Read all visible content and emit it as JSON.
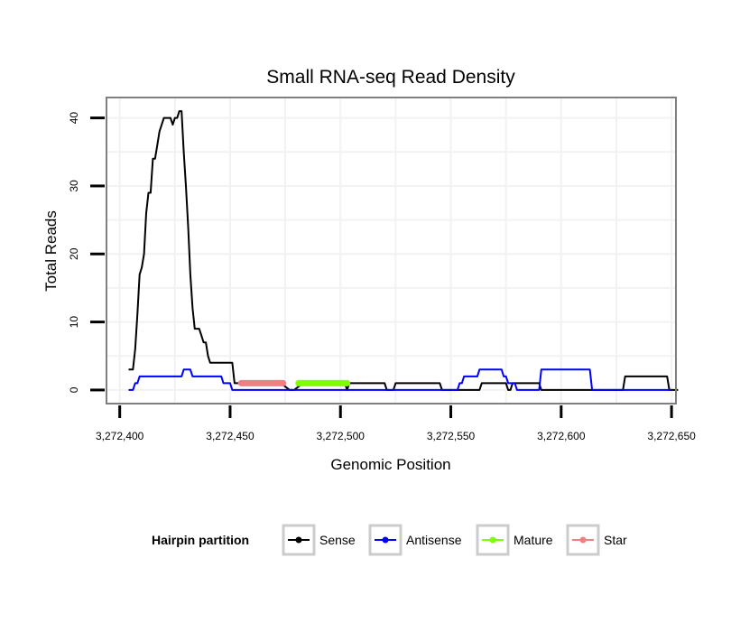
{
  "chart_data": {
    "type": "line",
    "title": "Small RNA-seq Read Density",
    "xlabel": "Genomic Position",
    "ylabel": "Total Reads",
    "xlim": [
      3272394,
      3272652
    ],
    "ylim": [
      -2,
      43
    ],
    "x_ticks": [
      3272400,
      3272450,
      3272500,
      3272550,
      3272600,
      3272650
    ],
    "x_tick_labels": [
      "3,272,400",
      "3,272,450",
      "3,272,500",
      "3,272,550",
      "3,272,600",
      "3,272,650"
    ],
    "y_ticks": [
      0,
      10,
      20,
      30,
      40
    ],
    "y_tick_labels": [
      "0",
      "10",
      "20",
      "30",
      "40"
    ],
    "grid": true,
    "legend": {
      "title": "Hairpin partition",
      "position": "bottom",
      "entries": [
        "Sense",
        "Antisense",
        "Mature",
        "Star"
      ]
    },
    "series": [
      {
        "name": "Sense",
        "color": "#000000",
        "x": [
          3272404,
          3272406,
          3272407,
          3272408,
          3272409,
          3272410,
          3272411,
          3272412,
          3272413,
          3272414,
          3272415,
          3272416,
          3272417,
          3272418,
          3272420,
          3272422,
          3272423,
          3272424,
          3272425,
          3272426,
          3272427,
          3272428,
          3272429,
          3272430,
          3272431,
          3272432,
          3272433,
          3272434,
          3272435,
          3272436,
          3272437,
          3272438,
          3272439,
          3272440,
          3272441,
          3272442,
          3272443,
          3272445,
          3272448,
          3272451,
          3272452,
          3272454,
          3272456,
          3272471,
          3272473,
          3272477,
          3272479,
          3272483,
          3272502,
          3272503,
          3272504,
          3272520,
          3272521,
          3272524,
          3272525,
          3272545,
          3272546,
          3272547,
          3272548,
          3272563,
          3272564,
          3272565,
          3272566,
          3272575,
          3272576,
          3272577,
          3272578,
          3272590,
          3272591,
          3272600,
          3272628,
          3272629,
          3272630,
          3272648,
          3272649,
          3272650,
          3272653
        ],
        "y": [
          3,
          3,
          6,
          11,
          17,
          18,
          20,
          26,
          29,
          29,
          34,
          34,
          36,
          38,
          40,
          40,
          40,
          39,
          40,
          40,
          41,
          41,
          35,
          30,
          24,
          17,
          12,
          9,
          9,
          9,
          8,
          7,
          7,
          5,
          4,
          4,
          4,
          4,
          4,
          4,
          1,
          1,
          1,
          1,
          1,
          0,
          0,
          1,
          1,
          0,
          1,
          1,
          0,
          0,
          1,
          1,
          0,
          0,
          0,
          0,
          1,
          1,
          1,
          1,
          0,
          0,
          1,
          1,
          0,
          0,
          0,
          2,
          2,
          2,
          0,
          0,
          0
        ]
      },
      {
        "name": "Antisense",
        "color": "#0000ff",
        "x": [
          3272404,
          3272406,
          3272407,
          3272408,
          3272409,
          3272410,
          3272428,
          3272429,
          3272432,
          3272433,
          3272445,
          3272446,
          3272447,
          3272448,
          3272449,
          3272450,
          3272451,
          3272452,
          3272553,
          3272554,
          3272555,
          3272556,
          3272559,
          3272560,
          3272561,
          3272562,
          3272563,
          3272564,
          3272566,
          3272567,
          3272568,
          3272573,
          3272574,
          3272575,
          3272576,
          3272577,
          3272578,
          3272579,
          3272580,
          3272582,
          3272583,
          3272590,
          3272591,
          3272592,
          3272612,
          3272613,
          3272614,
          3272615,
          3272616,
          3272650
        ],
        "y": [
          0,
          0,
          1,
          1,
          2,
          2,
          2,
          3,
          3,
          2,
          2,
          2,
          1,
          1,
          1,
          1,
          0,
          0,
          0,
          1,
          1,
          2,
          2,
          2,
          2,
          2,
          3,
          3,
          3,
          3,
          3,
          3,
          2,
          2,
          1,
          1,
          1,
          1,
          0,
          0,
          0,
          0,
          3,
          3,
          3,
          3,
          0,
          0,
          0,
          0
        ]
      },
      {
        "name": "Mature",
        "color": "#7fff00",
        "x": [
          3272481,
          3272503
        ],
        "y": [
          1,
          1
        ]
      },
      {
        "name": "Star",
        "color": "#f08080",
        "x": [
          3272455,
          3272474
        ],
        "y": [
          1,
          1
        ]
      }
    ]
  }
}
